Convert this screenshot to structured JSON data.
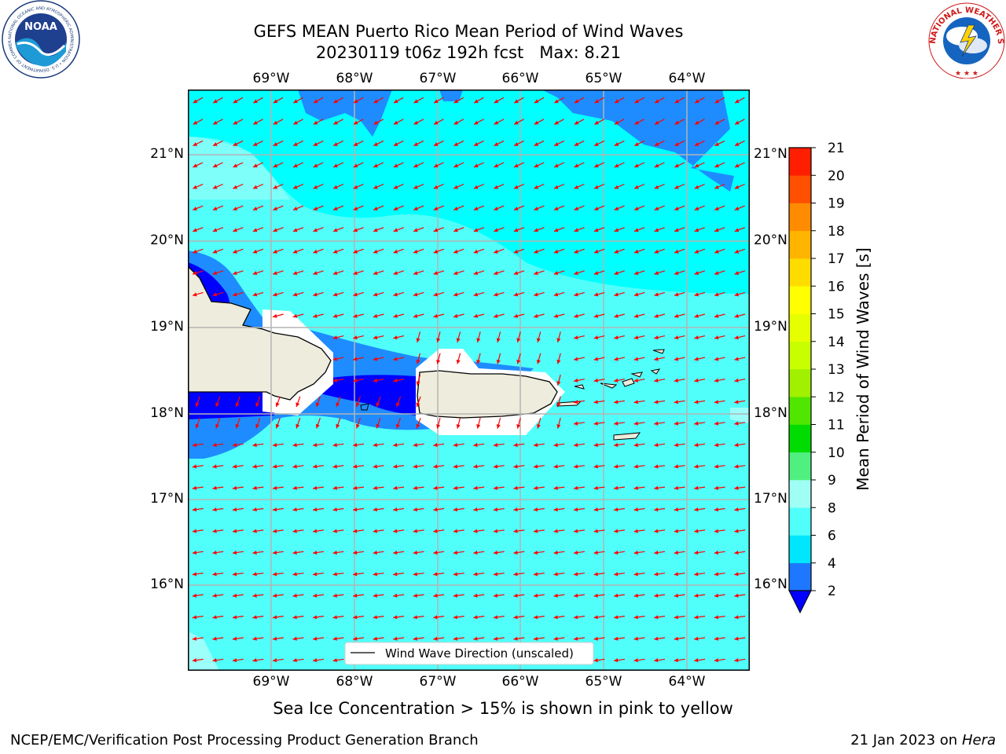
{
  "header": {
    "title_line1": "GEFS MEAN Puerto Rico Mean Period of Wind Waves",
    "title_line2": "20230119 t06z 192h fcst   Max: 8.21"
  },
  "logos": {
    "noaa_text": "NOAA",
    "noaa_ring": "NATIONAL OCEANIC AND ATMOSPHERIC ADMINISTRATION • U.S. DEPARTMENT OF COMMERCE",
    "nws_ring": "NATIONAL WEATHER SERVICE"
  },
  "map": {
    "lon_labels": [
      "69°W",
      "68°W",
      "67°W",
      "66°W",
      "65°W",
      "64°W"
    ],
    "lat_labels": [
      "21°N",
      "20°N",
      "19°N",
      "18°N",
      "17°N",
      "16°N"
    ],
    "legend_label": "Wind Wave Direction (unscaled)",
    "ocean_colors": {
      "lightest": "#9dfffa",
      "light": "#4dfffb",
      "cyan": "#00ffff",
      "blue": "#1e8cff",
      "dark": "#0000ff"
    },
    "land_color": "#eeecdc",
    "arrow_color": "#ff0000"
  },
  "colorbar": {
    "label": "Mean Period of Wind Waves [s]",
    "ticks": [
      "2",
      "4",
      "6",
      "8",
      "9",
      "10",
      "11",
      "12",
      "13",
      "14",
      "15",
      "16",
      "17",
      "18",
      "19",
      "20",
      "21"
    ],
    "colors": [
      "#1e78ff",
      "#00e6ff",
      "#50fffa",
      "#a0fff5",
      "#50f080",
      "#00dc00",
      "#50e600",
      "#a0f000",
      "#c8ff00",
      "#e6ff00",
      "#ffff00",
      "#ffdc00",
      "#ffb400",
      "#ff8c00",
      "#ff5000",
      "#ff1e00"
    ],
    "under_color": "#0000ff"
  },
  "footer": {
    "sea_ice_note": "Sea Ice Concentration > 15% is shown in pink to yellow",
    "branch": "NCEP/EMC/Verification Post Processing Product Generation Branch",
    "date": "21 Jan 2023 on ",
    "machine": "Hera"
  }
}
